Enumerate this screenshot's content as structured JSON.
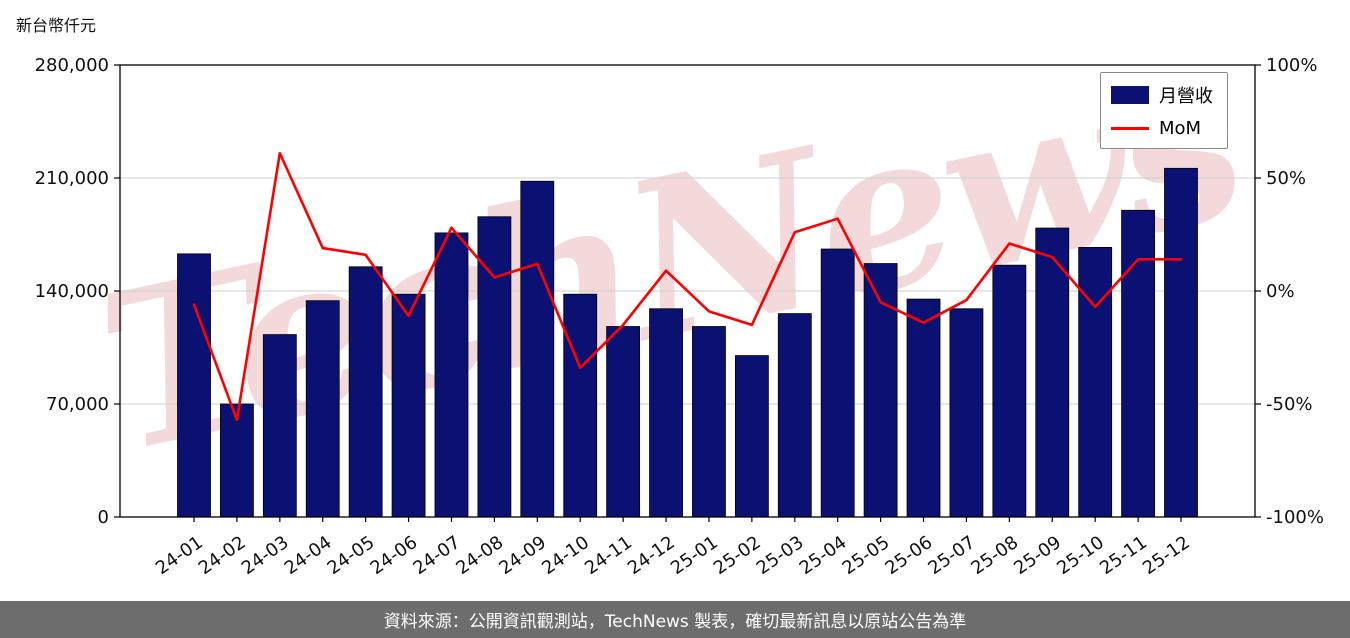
{
  "header": {
    "unit_label": "新台幣仟元"
  },
  "watermark": {
    "text": "TechNews",
    "color": "rgba(216,130,130,0.30)"
  },
  "footer": {
    "text": "資料來源：公開資訊觀測站，TechNews 製表，確切最新訊息以原站公告為準"
  },
  "chart_data": {
    "type": "bar",
    "title": "",
    "categories": [
      "24-01",
      "24-02",
      "24-03",
      "24-04",
      "24-05",
      "24-06",
      "24-07",
      "24-08",
      "24-09",
      "24-10",
      "24-11",
      "24-12",
      "25-01",
      "25-02",
      "25-03",
      "25-04",
      "25-05",
      "25-06",
      "25-07",
      "25-08",
      "25-09",
      "25-10",
      "25-11",
      "25-12"
    ],
    "series": [
      {
        "name": "月營收",
        "type": "bar",
        "axis": "left",
        "color": "#0b1172",
        "values": [
          163000,
          70000,
          113000,
          134000,
          155000,
          138000,
          176000,
          186000,
          208000,
          138000,
          118000,
          129000,
          118000,
          100000,
          126000,
          166000,
          157000,
          135000,
          129000,
          156000,
          179000,
          167000,
          190000,
          216000
        ]
      },
      {
        "name": "MoM",
        "type": "line",
        "axis": "right",
        "unit": "%",
        "color": "#ff0000",
        "values": [
          -6,
          -57,
          61,
          19,
          16,
          -11,
          28,
          6,
          12,
          -34,
          -15,
          9,
          -9,
          -15,
          26,
          32,
          -5,
          -14,
          -4,
          21,
          15,
          -7,
          14,
          14
        ]
      }
    ],
    "left_axis": {
      "min": 0,
      "max": 280000,
      "tick_values": [
        0,
        70000,
        140000,
        210000,
        280000
      ],
      "tick_labels": [
        "0",
        "70,000",
        "140,000",
        "210,000",
        "280,000"
      ]
    },
    "right_axis": {
      "min": -100,
      "max": 100,
      "tick_values": [
        -100,
        -50,
        0,
        50,
        100
      ],
      "tick_labels": [
        "-100%",
        "-50%",
        "0%",
        "50%",
        "100%"
      ]
    },
    "legend": {
      "position": "top-right",
      "entries": [
        "月營收",
        "MoM"
      ]
    },
    "grid": true
  }
}
